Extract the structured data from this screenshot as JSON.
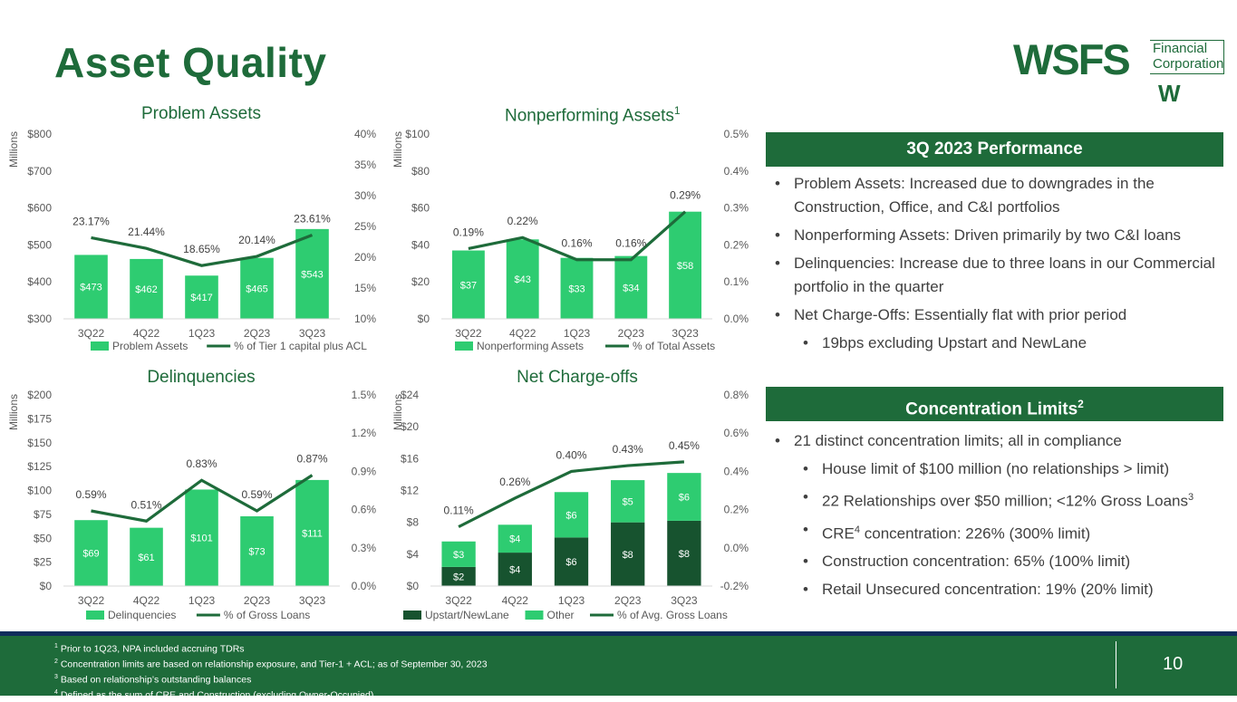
{
  "title": "Asset Quality",
  "logo": {
    "main": "WSFS",
    "line1": "Financial",
    "line2": "Corporation",
    "mark": "W"
  },
  "colors": {
    "brand_green": "#1e6b3a",
    "bar_green": "#2ecc71",
    "dark_green": "#17532f",
    "navy": "#0f2d5c"
  },
  "axis_unit": "Millions",
  "chart_data": [
    {
      "id": "problem-assets",
      "type": "bar",
      "title": "Problem Assets",
      "sup": "",
      "categories": [
        "3Q22",
        "4Q22",
        "1Q23",
        "2Q23",
        "3Q23"
      ],
      "y_ticks": [
        "$800",
        "$700",
        "$600",
        "$500",
        "$400",
        "$300"
      ],
      "ylim": [
        300,
        800
      ],
      "series": [
        {
          "name": "Problem Assets",
          "values": [
            473,
            462,
            417,
            465,
            543
          ],
          "labels": [
            "$473",
            "$462",
            "$417",
            "$465",
            "$543"
          ]
        }
      ],
      "line": {
        "name": "% of Tier 1 capital plus ACL",
        "values": [
          23.17,
          21.44,
          18.65,
          20.14,
          23.61
        ],
        "labels": [
          "23.17%",
          "21.44%",
          "18.65%",
          "20.14%",
          "23.61%"
        ]
      },
      "y2_ticks": [
        "40%",
        "35%",
        "30%",
        "25%",
        "20%",
        "15%",
        "10%"
      ],
      "y2lim": [
        10,
        40
      ]
    },
    {
      "id": "nonperforming-assets",
      "type": "bar",
      "title": "Nonperforming Assets",
      "sup": "1",
      "categories": [
        "3Q22",
        "4Q22",
        "1Q23",
        "2Q23",
        "3Q23"
      ],
      "y_ticks": [
        "$100",
        "$80",
        "$60",
        "$40",
        "$20",
        "$0"
      ],
      "ylim": [
        0,
        100
      ],
      "series": [
        {
          "name": "Nonperforming Assets",
          "values": [
            37,
            43,
            33,
            34,
            58
          ],
          "labels": [
            "$37",
            "$43",
            "$33",
            "$34",
            "$58"
          ]
        }
      ],
      "line": {
        "name": "% of Total Assets",
        "values": [
          0.19,
          0.22,
          0.16,
          0.16,
          0.29
        ],
        "labels": [
          "0.19%",
          "0.22%",
          "0.16%",
          "0.16%",
          "0.29%"
        ]
      },
      "y2_ticks": [
        "0.5%",
        "0.4%",
        "0.3%",
        "0.2%",
        "0.1%",
        "0.0%"
      ],
      "y2lim": [
        0,
        0.5
      ]
    },
    {
      "id": "delinquencies",
      "type": "bar",
      "title": "Delinquencies",
      "sup": "",
      "categories": [
        "3Q22",
        "4Q22",
        "1Q23",
        "2Q23",
        "3Q23"
      ],
      "y_ticks": [
        "$200",
        "$175",
        "$150",
        "$125",
        "$100",
        "$75",
        "$50",
        "$25",
        "$0"
      ],
      "ylim": [
        0,
        200
      ],
      "series": [
        {
          "name": "Delinquencies",
          "values": [
            69,
            61,
            101,
            73,
            111
          ],
          "labels": [
            "$69",
            "$61",
            "$101",
            "$73",
            "$111"
          ]
        }
      ],
      "line": {
        "name": "% of Gross Loans",
        "values": [
          0.59,
          0.51,
          0.83,
          0.59,
          0.87
        ],
        "labels": [
          "0.59%",
          "0.51%",
          "0.83%",
          "0.59%",
          "0.87%"
        ]
      },
      "y2_ticks": [
        "1.5%",
        "1.2%",
        "0.9%",
        "0.6%",
        "0.3%",
        "0.0%"
      ],
      "y2lim": [
        0,
        1.5
      ]
    },
    {
      "id": "net-charge-offs",
      "type": "bar",
      "title": "Net Charge-offs",
      "sup": "",
      "categories": [
        "3Q22",
        "4Q22",
        "1Q23",
        "2Q23",
        "3Q23"
      ],
      "y_ticks": [
        "$24",
        "$20",
        "$16",
        "$12",
        "$8",
        "$4",
        "$0"
      ],
      "ylim": [
        0,
        24
      ],
      "stacked": true,
      "series": [
        {
          "name": "Upstart/NewLane",
          "values": [
            2.4,
            4.2,
            6.1,
            8.0,
            8.2
          ],
          "labels": [
            "$2",
            "$4",
            "$6",
            "$8",
            "$8"
          ]
        },
        {
          "name": "Other",
          "values": [
            3.2,
            3.5,
            5.7,
            5.3,
            6.0
          ],
          "labels": [
            "$3",
            "$4",
            "$6",
            "$5",
            "$6"
          ]
        }
      ],
      "line": {
        "name": "% of Avg. Gross Loans",
        "values": [
          0.11,
          0.26,
          0.4,
          0.43,
          0.45
        ],
        "labels": [
          "0.11%",
          "0.26%",
          "0.40%",
          "0.43%",
          "0.45%"
        ]
      },
      "y2_ticks": [
        "0.8%",
        "0.6%",
        "0.4%",
        "0.2%",
        "0.0%",
        "-0.2%"
      ],
      "y2lim": [
        -0.2,
        0.8
      ]
    }
  ],
  "performance": {
    "header": "3Q 2023 Performance",
    "bullets": [
      "Problem Assets: Increased due to downgrades in the Construction, Office, and C&I portfolios",
      "Nonperforming Assets: Driven primarily by two C&I loans",
      "Delinquencies:  Increase due to three loans in our Commercial portfolio in the quarter",
      "Net Charge-Offs: Essentially flat with prior period"
    ],
    "sub_bullet": "19bps excluding Upstart and NewLane"
  },
  "concentration": {
    "header": "Concentration Limits",
    "header_sup": "2",
    "b1": "21 distinct concentration limits; all in compliance",
    "b2": "House limit of $100 million (no relationships > limit)",
    "b3": "22 Relationships over $50 million; <12% Gross Loans",
    "b3_sup": "3",
    "b4_pre": "CRE",
    "b4_sup": "4",
    "b4_post": " concentration: 226% (300% limit)",
    "b5": "Construction concentration: 65% (100% limit)",
    "b6": "Retail Unsecured concentration: 19% (20% limit)"
  },
  "footnotes": [
    {
      "num": "1",
      "text": " Prior to 1Q23, NPA included accruing TDRs"
    },
    {
      "num": "2",
      "text": " Concentration limits are based on relationship exposure, and Tier-1 + ACL; as of September 30, 2023"
    },
    {
      "num": "3",
      "text": " Based on relationship’s outstanding balances"
    },
    {
      "num": "4",
      "text": " Defined as the sum of CRE and Construction (excluding Owner-Occupied)"
    }
  ],
  "page_number": "10"
}
